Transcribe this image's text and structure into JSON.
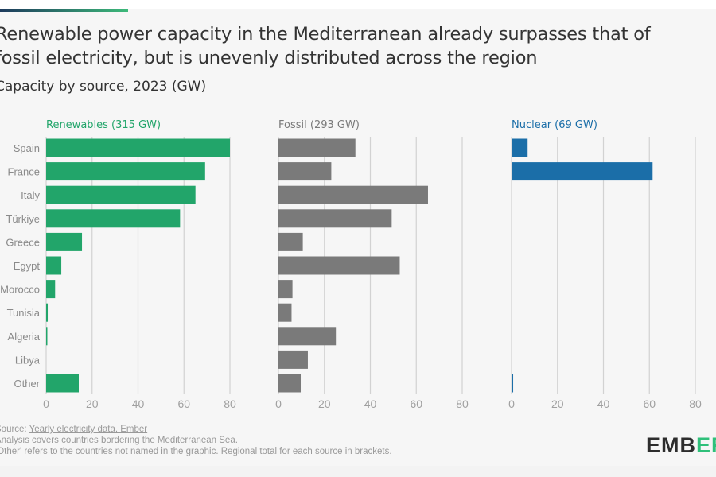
{
  "title_line1": "Renewable power capacity in the Mediterranean already surpasses that of",
  "title_line2": "fossil electricity, but is unevenly distributed across the region",
  "subtitle": "Capacity by source, 2023 (GW)",
  "footer": {
    "source_prefix": "Source: ",
    "source_link": "Yearly electricity data, Ember",
    "note1": "Analysis covers countries bordering the Mediterranean Sea.",
    "note2": "'Other' refers to the countries not named in the graphic. Regional total for each source in brackets."
  },
  "logo": {
    "main": "EMB",
    "accent": "ER"
  },
  "chart_data": {
    "type": "bar",
    "orientation": "horizontal",
    "categories": [
      "Spain",
      "France",
      "Italy",
      "Türkiye",
      "Greece",
      "Egypt",
      "Morocco",
      "Tunisia",
      "Algeria",
      "Libya",
      "Other"
    ],
    "xlim": [
      0,
      80
    ],
    "ticks": [
      0,
      20,
      40,
      60,
      80
    ],
    "grid": true,
    "panels": [
      {
        "name": "Renewables (315 GW)",
        "color": "#22a56a",
        "values": [
          80.0,
          69.2,
          65.0,
          58.3,
          15.6,
          6.6,
          3.9,
          0.7,
          0.5,
          0,
          14.2
        ]
      },
      {
        "name": "Fossil (293 GW)",
        "color": "#7a7a7a",
        "values": [
          33.5,
          23.0,
          65.1,
          49.3,
          10.6,
          52.8,
          6.1,
          5.7,
          25.0,
          12.8,
          9.7
        ]
      },
      {
        "name": "Nuclear (69 GW)",
        "color": "#1b6ea8",
        "values": [
          7.0,
          61.4,
          0,
          0,
          0,
          0,
          0,
          0,
          0,
          0,
          0.7
        ]
      }
    ]
  }
}
